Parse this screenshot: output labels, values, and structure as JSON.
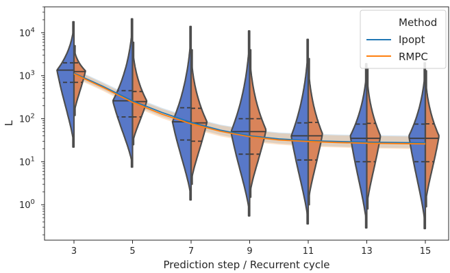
{
  "chart_data": {
    "type": "violin",
    "xlabel": "Prediction step / Recurrent cycle",
    "ylabel": "L",
    "yscale": "log",
    "ylim": [
      0.15,
      40000
    ],
    "categories": [
      "3",
      "5",
      "7",
      "9",
      "11",
      "13",
      "15"
    ],
    "yticks": [
      {
        "value": 1,
        "label": "10^0",
        "base": "10",
        "exp": "0"
      },
      {
        "value": 10,
        "label": "10^1",
        "base": "10",
        "exp": "1"
      },
      {
        "value": 100,
        "label": "10^2",
        "base": "10",
        "exp": "2"
      },
      {
        "value": 1000,
        "label": "10^3",
        "base": "10",
        "exp": "3"
      },
      {
        "value": 10000,
        "label": "10^4",
        "base": "10",
        "exp": "4"
      }
    ],
    "legend": {
      "title": "Method",
      "location": "upper right"
    },
    "series": [
      {
        "name": "Ipopt",
        "color": "#4C72B0",
        "violin_fill": "#5878c8",
        "line_color": "#1f77b4",
        "line_x": [
          3,
          4,
          5,
          6,
          7,
          8,
          9,
          10,
          11,
          12,
          13,
          14,
          15
        ],
        "line_y": [
          1150,
          560,
          260,
          140,
          82,
          54,
          40,
          34,
          31,
          29.5,
          28.5,
          28,
          27.5
        ],
        "band_low": [
          950,
          470,
          215,
          112,
          64,
          42,
          31,
          26.5,
          24,
          22.5,
          21.5,
          21,
          20.5
        ],
        "band_high": [
          1450,
          700,
          330,
          180,
          108,
          73,
          56,
          48,
          45,
          43,
          42,
          41,
          40
        ]
      },
      {
        "name": "RMPC",
        "color": "#DD8452",
        "violin_fill": "#d9845a",
        "line_color": "#ff7f0e",
        "line_x": [
          3,
          4,
          5,
          6,
          7,
          8,
          9,
          10,
          11,
          12,
          13,
          14,
          15
        ],
        "line_y": [
          1100,
          530,
          240,
          128,
          76,
          51,
          38,
          32,
          29.5,
          28,
          27,
          26.5,
          26
        ],
        "band_low": [
          900,
          440,
          198,
          103,
          59,
          39,
          29,
          25,
          22.5,
          21.5,
          20.5,
          20,
          19.5
        ],
        "band_high": [
          1400,
          660,
          310,
          170,
          102,
          70,
          54,
          46,
          43,
          41,
          40,
          39,
          38
        ]
      }
    ],
    "violins": [
      {
        "category": "3",
        "left": {
          "min": 22,
          "max": 18000,
          "q1": 700,
          "median": 1350,
          "q3": 2000,
          "mode": 1350,
          "width": 0.62
        },
        "right": {
          "min": 120,
          "max": 5000,
          "q1": 700,
          "median": 1250,
          "q3": 2000,
          "mode": 1300,
          "width": 0.42
        }
      },
      {
        "category": "5",
        "left": {
          "min": 7.5,
          "max": 21000,
          "q1": 110,
          "median": 260,
          "q3": 450,
          "mode": 260,
          "width": 0.72
        },
        "right": {
          "min": 25,
          "max": 6000,
          "q1": 110,
          "median": 250,
          "q3": 430,
          "mode": 260,
          "width": 0.52
        }
      },
      {
        "category": "7",
        "left": {
          "min": 1.3,
          "max": 14000,
          "q1": 32,
          "median": 85,
          "q3": 180,
          "mode": 85,
          "width": 0.68
        },
        "right": {
          "min": 3,
          "max": 4000,
          "q1": 30,
          "median": 80,
          "q3": 175,
          "mode": 85,
          "width": 0.58
        }
      },
      {
        "category": "9",
        "left": {
          "min": 0.55,
          "max": 11000,
          "q1": 15,
          "median": 50,
          "q3": 100,
          "mode": 50,
          "width": 0.68
        },
        "right": {
          "min": 1.5,
          "max": 4000,
          "q1": 15,
          "median": 50,
          "q3": 100,
          "mode": 55,
          "width": 0.6
        }
      },
      {
        "category": "11",
        "left": {
          "min": 0.36,
          "max": 7000,
          "q1": 11,
          "median": 40,
          "q3": 80,
          "mode": 40,
          "width": 0.62
        },
        "right": {
          "min": 1.0,
          "max": 2500,
          "q1": 11,
          "median": 40,
          "q3": 82,
          "mode": 45,
          "width": 0.52
        }
      },
      {
        "category": "13",
        "left": {
          "min": 0.29,
          "max": 1900,
          "q1": 10,
          "median": 35,
          "q3": 75,
          "mode": 40,
          "width": 0.6
        },
        "right": {
          "min": 0.8,
          "max": 1500,
          "q1": 10,
          "median": 35,
          "q3": 78,
          "mode": 40,
          "width": 0.5
        }
      },
      {
        "category": "15",
        "left": {
          "min": 0.28,
          "max": 2000,
          "q1": 10,
          "median": 35,
          "q3": 75,
          "mode": 40,
          "width": 0.6
        },
        "right": {
          "min": 0.9,
          "max": 1300,
          "q1": 10,
          "median": 35,
          "q3": 76,
          "mode": 40,
          "width": 0.5
        }
      }
    ]
  }
}
